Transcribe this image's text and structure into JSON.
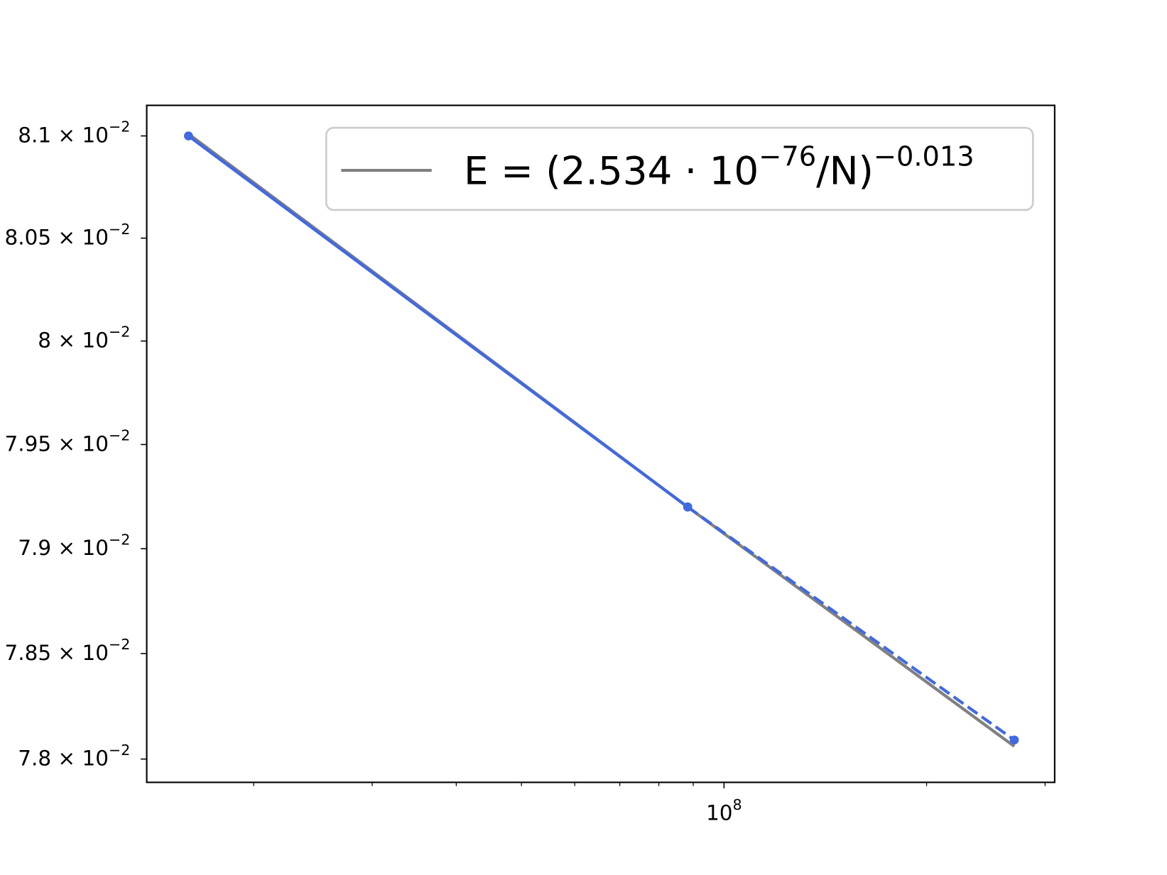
{
  "chart_data": {
    "type": "line",
    "xscale": "log",
    "yscale": "log",
    "xlim": [
      13870000,
      310000000
    ],
    "xticks": [
      {
        "value": 100000000,
        "label": "10^{8}"
      }
    ],
    "xminorticks": [
      20000000,
      30000000,
      40000000,
      50000000,
      60000000,
      70000000,
      80000000,
      90000000,
      200000000,
      300000000
    ],
    "ylim": [
      0.07789,
      0.08115
    ],
    "yticks": [
      {
        "value": 0.078,
        "label": "7.8 × 10^{−2}"
      },
      {
        "value": 0.0785,
        "label": "7.85 × 10^{−2}"
      },
      {
        "value": 0.079,
        "label": "7.9 × 10^{−2}"
      },
      {
        "value": 0.0795,
        "label": "7.95 × 10^{−2}"
      },
      {
        "value": 0.08,
        "label": "8 × 10^{−2}"
      },
      {
        "value": 0.0805,
        "label": "8.05 × 10^{−2}"
      },
      {
        "value": 0.081,
        "label": "8.1 × 10^{−2}"
      }
    ],
    "legend": "upper right",
    "series": [
      {
        "name": "E = (2.534 · 10^{−76}/N)^{−0.013}",
        "color": "#808080",
        "style": "solid",
        "markers": false,
        "x": [
          16000000,
          88300000,
          270000000
        ],
        "values": [
          0.08101,
          0.0792,
          0.07806
        ]
      },
      {
        "color": "#4169e1",
        "style": "solid",
        "markers": true,
        "x": [
          16000000,
          88300000
        ],
        "values": [
          0.081,
          0.0792
        ]
      },
      {
        "color": "#4169e1",
        "style": "dashed",
        "markers": true,
        "x": [
          88300000,
          270000000
        ],
        "values": [
          0.0792,
          0.07809
        ]
      }
    ]
  }
}
